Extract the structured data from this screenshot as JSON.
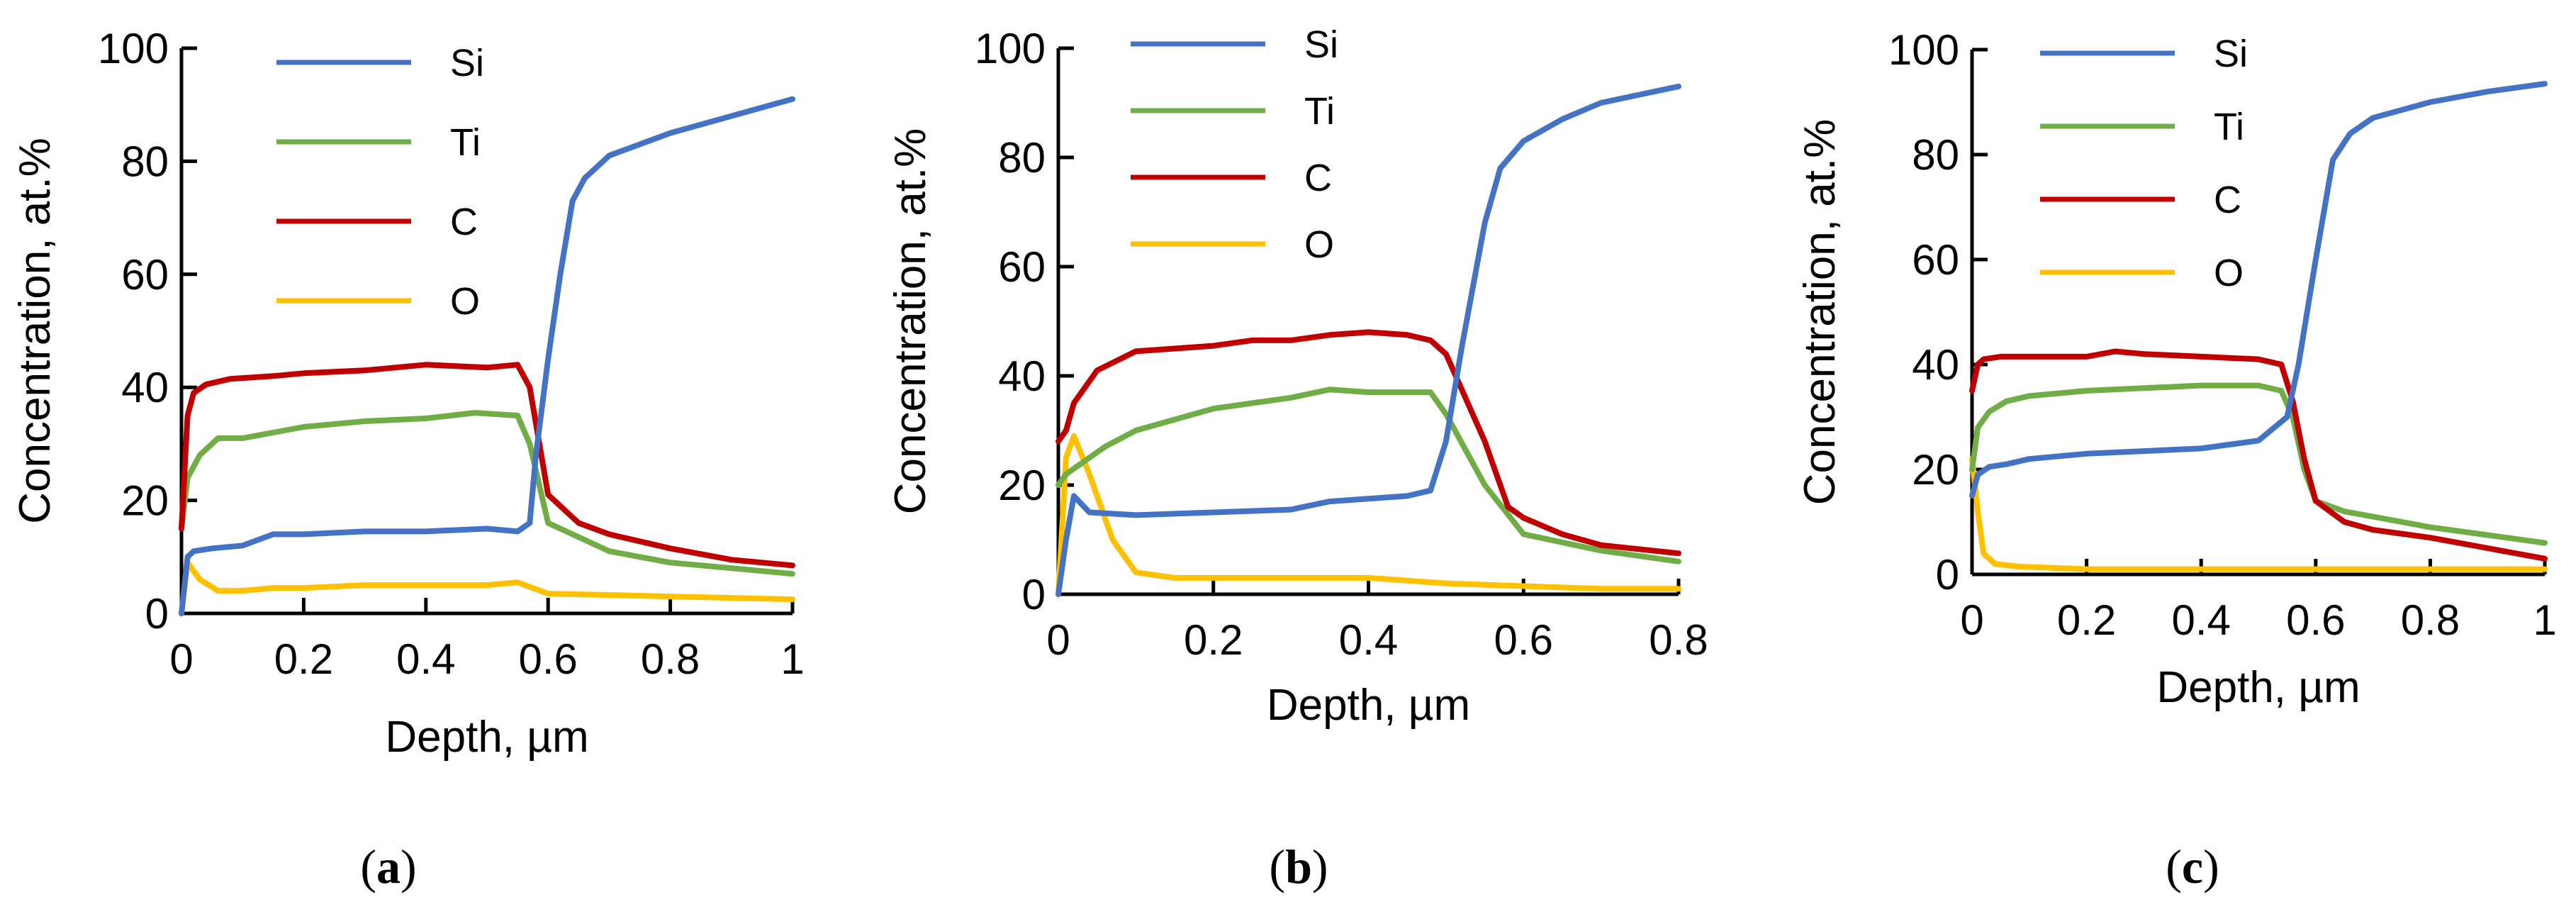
{
  "figure": {
    "panel_labels": [
      "a",
      "b",
      "c"
    ]
  },
  "chart_data": [
    {
      "type": "line",
      "panel": "a",
      "xlabel": "Depth, µm",
      "ylabel": "Concentration, at.%",
      "xlim": [
        0,
        1
      ],
      "ylim": [
        0,
        100
      ],
      "xticks": [
        0,
        0.2,
        0.4,
        0.6,
        0.8,
        1
      ],
      "xtick_labels": [
        "0",
        "0.2",
        "0.4",
        "0.6",
        "0.8",
        "1"
      ],
      "yticks": [
        0,
        20,
        40,
        60,
        80,
        100
      ],
      "ytick_labels": [
        "0",
        "20",
        "40",
        "60",
        "80",
        "100"
      ],
      "legend": [
        "Si",
        "Ti",
        "C",
        "O"
      ],
      "colors": {
        "Si": "#4472C4",
        "Ti": "#70AD47",
        "C": "#C00000",
        "O": "#FFC000"
      },
      "series": [
        {
          "name": "Si",
          "x": [
            0,
            0.01,
            0.02,
            0.05,
            0.1,
            0.15,
            0.2,
            0.3,
            0.4,
            0.5,
            0.55,
            0.57,
            0.58,
            0.6,
            0.62,
            0.64,
            0.66,
            0.7,
            0.8,
            0.9,
            1.0
          ],
          "y": [
            0,
            10,
            11,
            11.5,
            12,
            14,
            14,
            14.5,
            14.5,
            15,
            14.5,
            16,
            28,
            45,
            60,
            73,
            77,
            81,
            85,
            88,
            91
          ]
        },
        {
          "name": "Ti",
          "x": [
            0,
            0.01,
            0.03,
            0.06,
            0.1,
            0.15,
            0.2,
            0.3,
            0.4,
            0.48,
            0.55,
            0.57,
            0.6,
            0.7,
            0.8,
            0.9,
            1.0
          ],
          "y": [
            15,
            24,
            28,
            31,
            31,
            32,
            33,
            34,
            34.5,
            35.5,
            35,
            30,
            16,
            11,
            9,
            8,
            7
          ]
        },
        {
          "name": "C",
          "x": [
            0,
            0.01,
            0.02,
            0.04,
            0.08,
            0.15,
            0.2,
            0.3,
            0.4,
            0.5,
            0.55,
            0.57,
            0.6,
            0.65,
            0.7,
            0.8,
            0.9,
            1.0
          ],
          "y": [
            15,
            35,
            39,
            40.5,
            41.5,
            42,
            42.5,
            43,
            44,
            43.5,
            44,
            40,
            21,
            16,
            14,
            11.5,
            9.5,
            8.5
          ]
        },
        {
          "name": "O",
          "x": [
            0,
            0.01,
            0.03,
            0.06,
            0.1,
            0.15,
            0.2,
            0.3,
            0.4,
            0.5,
            0.55,
            0.6,
            0.8,
            1.0
          ],
          "y": [
            0,
            9,
            6,
            4,
            4,
            4.5,
            4.5,
            5,
            5,
            5,
            5.5,
            3.5,
            3,
            2.5
          ]
        }
      ]
    },
    {
      "type": "line",
      "panel": "b",
      "xlabel": "Depth, µm",
      "ylabel": "Concentration, at.%",
      "xlim": [
        0,
        0.8
      ],
      "ylim": [
        0,
        100
      ],
      "xticks": [
        0,
        0.2,
        0.4,
        0.6,
        0.8
      ],
      "xtick_labels": [
        "0",
        "0.2",
        "0.4",
        "0.6",
        "0.8"
      ],
      "yticks": [
        0,
        20,
        40,
        60,
        80,
        100
      ],
      "ytick_labels": [
        "0",
        "20",
        "40",
        "60",
        "80",
        "100"
      ],
      "legend": [
        "Si",
        "Ti",
        "C",
        "O"
      ],
      "colors": {
        "Si": "#4472C4",
        "Ti": "#70AD47",
        "C": "#C00000",
        "O": "#FFC000"
      },
      "series": [
        {
          "name": "Si",
          "x": [
            0,
            0.01,
            0.02,
            0.04,
            0.1,
            0.2,
            0.3,
            0.35,
            0.4,
            0.45,
            0.48,
            0.5,
            0.52,
            0.55,
            0.57,
            0.6,
            0.65,
            0.7,
            0.8
          ],
          "y": [
            0,
            10,
            18,
            15,
            14.5,
            15,
            15.5,
            17,
            17.5,
            18,
            19,
            28,
            45,
            68,
            78,
            83,
            87,
            90,
            93
          ]
        },
        {
          "name": "Ti",
          "x": [
            0,
            0.01,
            0.03,
            0.06,
            0.1,
            0.15,
            0.2,
            0.25,
            0.3,
            0.35,
            0.4,
            0.45,
            0.48,
            0.5,
            0.55,
            0.6,
            0.7,
            0.8
          ],
          "y": [
            20,
            22,
            24,
            27,
            30,
            32,
            34,
            35,
            36,
            37.5,
            37,
            37,
            37,
            33,
            20,
            11,
            8,
            6
          ]
        },
        {
          "name": "C",
          "x": [
            0,
            0.01,
            0.02,
            0.05,
            0.1,
            0.2,
            0.25,
            0.3,
            0.35,
            0.4,
            0.45,
            0.48,
            0.5,
            0.55,
            0.58,
            0.6,
            0.65,
            0.7,
            0.8
          ],
          "y": [
            28,
            30,
            35,
            41,
            44.5,
            45.5,
            46.5,
            46.5,
            47.5,
            48,
            47.5,
            46.5,
            44,
            28,
            16,
            14,
            11,
            9,
            7.5
          ]
        },
        {
          "name": "O",
          "x": [
            0,
            0.01,
            0.02,
            0.04,
            0.07,
            0.1,
            0.15,
            0.2,
            0.3,
            0.4,
            0.5,
            0.6,
            0.7,
            0.8
          ],
          "y": [
            0,
            25,
            29,
            22,
            10,
            4,
            3,
            3,
            3,
            3,
            2,
            1.5,
            1,
            1
          ]
        }
      ]
    },
    {
      "type": "line",
      "panel": "c",
      "xlabel": "Depth, µm",
      "ylabel": "Concentration, at.%",
      "xlim": [
        0,
        1
      ],
      "ylim": [
        0,
        100
      ],
      "xticks": [
        0,
        0.2,
        0.4,
        0.6,
        0.8,
        1
      ],
      "xtick_labels": [
        "0",
        "0.2",
        "0.4",
        "0.6",
        "0.8",
        "1"
      ],
      "yticks": [
        0,
        20,
        40,
        60,
        80,
        100
      ],
      "ytick_labels": [
        "0",
        "20",
        "40",
        "60",
        "80",
        "100"
      ],
      "legend": [
        "Si",
        "Ti",
        "C",
        "O"
      ],
      "colors": {
        "Si": "#4472C4",
        "Ti": "#70AD47",
        "C": "#C00000",
        "O": "#FFC000"
      },
      "series": [
        {
          "name": "Si",
          "x": [
            0,
            0.01,
            0.03,
            0.06,
            0.1,
            0.2,
            0.3,
            0.4,
            0.5,
            0.55,
            0.57,
            0.6,
            0.63,
            0.66,
            0.7,
            0.8,
            0.9,
            1.0
          ],
          "y": [
            15,
            19,
            20.5,
            21,
            22,
            23,
            23.5,
            24,
            25.5,
            30,
            40,
            60,
            79,
            84,
            87,
            90,
            92,
            93.5
          ]
        },
        {
          "name": "Ti",
          "x": [
            0,
            0.01,
            0.03,
            0.06,
            0.1,
            0.2,
            0.3,
            0.4,
            0.5,
            0.54,
            0.56,
            0.58,
            0.6,
            0.65,
            0.7,
            0.8,
            0.9,
            1.0
          ],
          "y": [
            20,
            28,
            31,
            33,
            34,
            35,
            35.5,
            36,
            36,
            35,
            30,
            20,
            14,
            12,
            11,
            9,
            7.5,
            6
          ]
        },
        {
          "name": "C",
          "x": [
            0,
            0.01,
            0.02,
            0.05,
            0.1,
            0.2,
            0.25,
            0.3,
            0.4,
            0.5,
            0.54,
            0.56,
            0.58,
            0.6,
            0.65,
            0.7,
            0.8,
            0.9,
            1.0
          ],
          "y": [
            35,
            40,
            41,
            41.5,
            41.5,
            41.5,
            42.5,
            42,
            41.5,
            41,
            40,
            33,
            22,
            14,
            10,
            8.5,
            7,
            5,
            3
          ]
        },
        {
          "name": "O",
          "x": [
            0,
            0.01,
            0.02,
            0.04,
            0.08,
            0.2,
            0.4,
            0.6,
            0.8,
            1.0
          ],
          "y": [
            22,
            12,
            4,
            2,
            1.5,
            1,
            1,
            1,
            1,
            1
          ]
        }
      ]
    }
  ]
}
